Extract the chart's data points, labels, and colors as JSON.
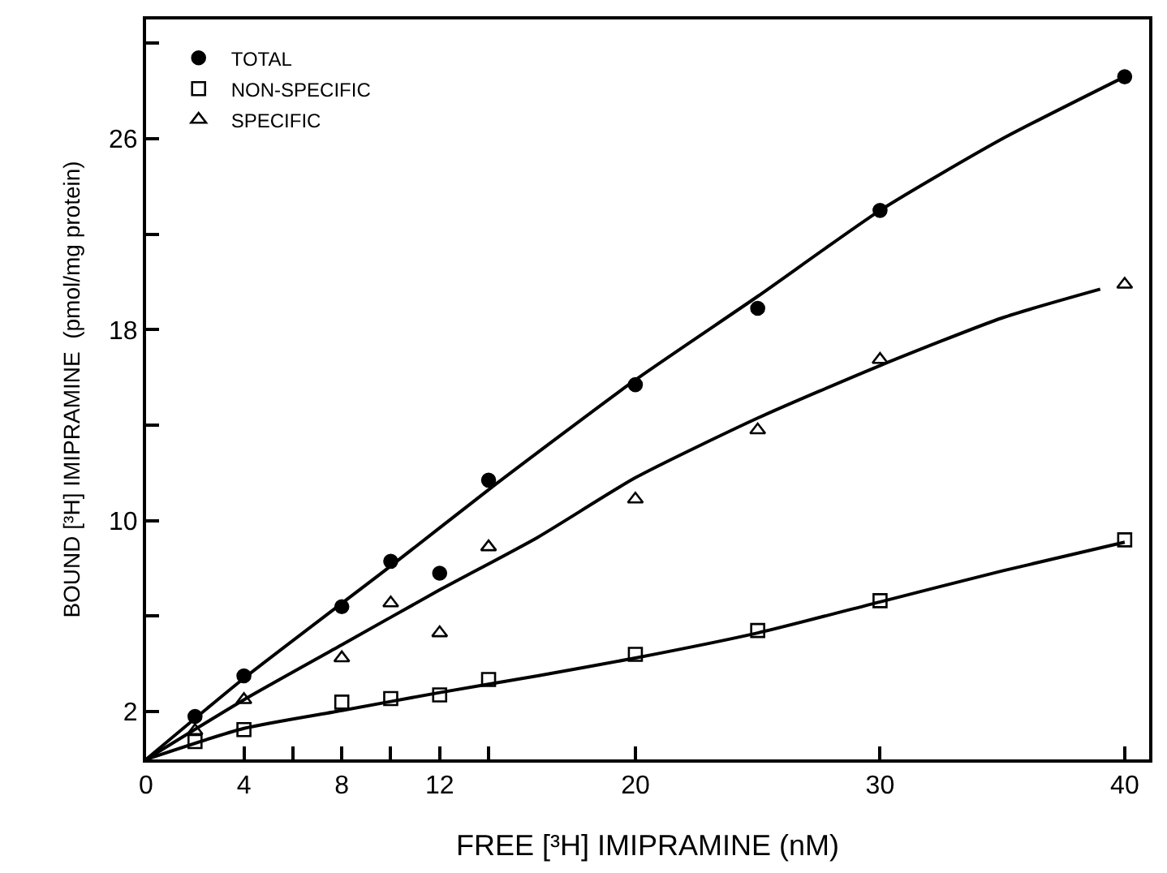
{
  "chart_data": {
    "type": "scatter",
    "xlabel": "FREE [³H] IMIPRAMINE (nM)",
    "ylabel": "BOUND [³H] IMIPRAMINE  (pmol/mg protein)",
    "x": [
      2,
      4,
      8,
      10,
      12,
      14,
      20,
      25,
      30,
      40
    ],
    "series": [
      {
        "name": "TOTAL",
        "color": "#000000",
        "marker": "circle",
        "values": [
          1.8,
          3.5,
          6.4,
          8.3,
          7.8,
          11.7,
          15.7,
          18.9,
          23.0,
          28.6
        ]
      },
      {
        "name": "NON-SPECIFIC",
        "color": "#000000",
        "marker": "square",
        "values": [
          0.75,
          1.25,
          2.4,
          2.55,
          2.7,
          3.35,
          4.4,
          5.4,
          6.65,
          9.2
        ]
      },
      {
        "name": "SPECIFIC",
        "color": "#000000",
        "marker": "triangle",
        "values": [
          1.2,
          2.5,
          4.25,
          6.55,
          5.3,
          8.9,
          10.9,
          13.8,
          16.75,
          19.9
        ]
      },
      {
        "type": "line",
        "color": "#000000",
        "marker": "none",
        "line_style": "solid",
        "x": [
          0,
          4,
          10,
          14,
          20,
          25,
          30,
          35,
          40
        ],
        "values": [
          0,
          3.4,
          8.1,
          11.3,
          15.9,
          19.4,
          23.0,
          26.0,
          28.6
        ]
      },
      {
        "type": "line",
        "color": "#000000",
        "marker": "none",
        "line_style": "solid",
        "x": [
          0,
          4,
          8,
          12,
          16,
          20,
          25,
          30,
          35,
          39
        ],
        "values": [
          0,
          2.5,
          4.8,
          7.1,
          9.3,
          11.8,
          14.3,
          16.5,
          18.5,
          19.7
        ]
      },
      {
        "type": "line",
        "color": "#000000",
        "marker": "none",
        "line_style": "solid",
        "x": [
          0,
          4,
          8,
          12,
          16,
          20,
          25,
          30,
          35,
          40
        ],
        "values": [
          0,
          1.3,
          2.05,
          2.8,
          3.5,
          4.25,
          5.3,
          6.6,
          7.9,
          9.1
        ]
      }
    ],
    "xlim": [
      0,
      41
    ],
    "xticks": [
      0,
      4,
      {
        "value": 6,
        "label": null
      },
      8,
      {
        "value": 10,
        "label": null
      },
      12,
      {
        "value": 14,
        "label": null
      },
      20,
      30,
      40
    ],
    "ylim": [
      0,
      31
    ],
    "yticks": [
      2,
      {
        "value": 6,
        "label": null
      },
      10,
      {
        "value": 14,
        "label": null
      },
      18,
      {
        "value": 22,
        "label": null
      },
      26,
      {
        "value": 30,
        "label": null
      }
    ],
    "grid": false,
    "legend": "top left"
  }
}
